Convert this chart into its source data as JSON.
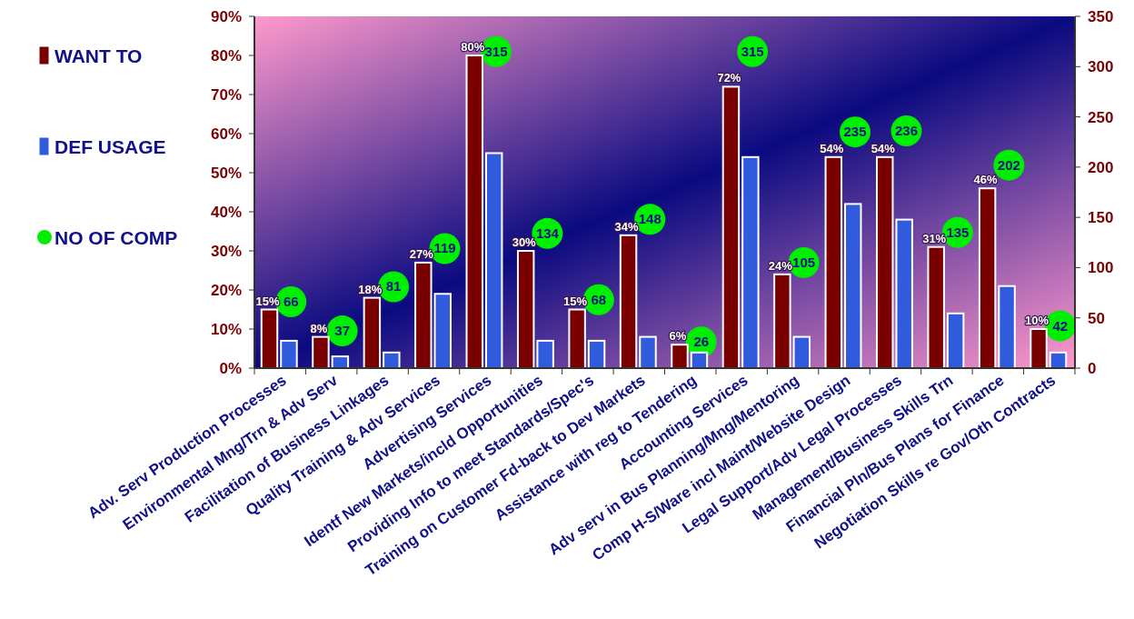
{
  "chart_data": {
    "type": "bar",
    "categories": [
      "Adv. Serv Production Processes",
      "Environmental Mng/Trn & Adv Serv",
      "Facilitation of Business Linkages",
      "Quality Training & Adv Services",
      "Advertising Services",
      "Identf New Markets/incld Opportunities",
      "Providing Info to meet Standards/Spec's",
      "Training on Customer Fd-back to Dev Markets",
      "Assistance with reg to Tendering",
      "Accounting Services",
      "Adv serv in Bus Planning/Mng/Mentoring",
      "Comp H-S/Ware incl Maint/Website Design",
      "Legal Support/Adv Legal Processes",
      "Management/Business Skills Trn",
      "Financial Pln/Bus Plans for Finance",
      "Negotiation Skills re Gov/Oth Contracts"
    ],
    "series": [
      {
        "name": "WANT TO",
        "color": "#7a0000",
        "values": [
          15,
          8,
          18,
          27,
          80,
          30,
          15,
          34,
          6,
          72,
          24,
          54,
          54,
          31,
          46,
          10
        ],
        "value_labels": [
          "15%",
          "8%",
          "18%",
          "27%",
          "80%",
          "30%",
          "15%",
          "34%",
          "6%",
          "72%",
          "24%",
          "54%",
          "54%",
          "31%",
          "46%",
          "10%"
        ]
      },
      {
        "name": "DEF USAGE",
        "color": "#2f5bdc",
        "values": [
          7,
          3,
          4,
          19,
          55,
          7,
          7,
          8,
          4,
          54,
          8,
          42,
          38,
          14,
          21,
          4
        ]
      },
      {
        "name": "NO OF COMP",
        "type": "scatter",
        "axis": "y2",
        "color": "#00ee00",
        "marker": "circle",
        "values": [
          66,
          37,
          81,
          119,
          315,
          134,
          68,
          148,
          26,
          315,
          105,
          235,
          236,
          135,
          202,
          42
        ],
        "value_labels": [
          "66",
          "37",
          "81",
          "119",
          "315",
          "134",
          "68",
          "148",
          "26",
          "315",
          "105",
          "235",
          "236",
          "135",
          "202",
          "42"
        ]
      }
    ],
    "ylim": [
      0,
      90
    ],
    "yticks": [
      {
        "value": 0,
        "label": "0%"
      },
      {
        "value": 10,
        "label": "10%"
      },
      {
        "value": 20,
        "label": "20%"
      },
      {
        "value": 30,
        "label": "30%"
      },
      {
        "value": 40,
        "label": "40%"
      },
      {
        "value": 50,
        "label": "50%"
      },
      {
        "value": 60,
        "label": "60%"
      },
      {
        "value": 70,
        "label": "70%"
      },
      {
        "value": 80,
        "label": "80%"
      },
      {
        "value": 90,
        "label": "90%"
      }
    ],
    "y2lim": [
      0,
      350
    ],
    "y2ticks": [
      0,
      50,
      100,
      150,
      200,
      250,
      300,
      350
    ],
    "legend": "left",
    "grid": false
  }
}
